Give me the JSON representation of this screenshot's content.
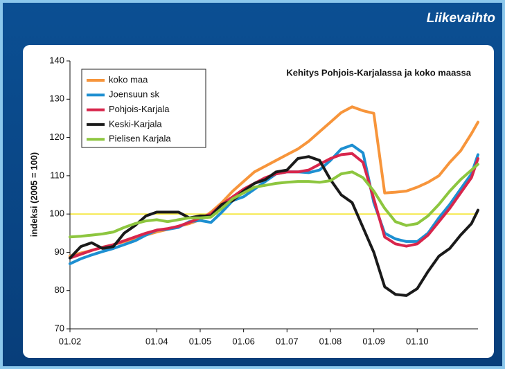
{
  "header": {
    "title": "Liikevaihto"
  },
  "chart_data": {
    "type": "line",
    "annotation": "Kehitys Pohjois-Karjalassa ja koko maassa",
    "y_label": "indeksi (2005 = 100)",
    "x": [
      2002,
      2002.25,
      2002.5,
      2002.75,
      2003,
      2003.25,
      2003.5,
      2003.75,
      2004,
      2004.25,
      2004.5,
      2004.75,
      2005,
      2005.25,
      2005.5,
      2005.75,
      2006,
      2006.25,
      2006.5,
      2006.75,
      2007,
      2007.25,
      2007.5,
      2007.75,
      2008,
      2008.25,
      2008.5,
      2008.75,
      2009,
      2009.25,
      2009.5,
      2009.75,
      2010,
      2010.25,
      2010.5,
      2010.75,
      2011,
      2011.25,
      2011.4
    ],
    "xlim": [
      2002,
      2011.4
    ],
    "xticks": [
      {
        "value": 2002,
        "label": "01.02"
      },
      {
        "value": 2004,
        "label": "01.04"
      },
      {
        "value": 2005,
        "label": "01.05"
      },
      {
        "value": 2006,
        "label": "01.06"
      },
      {
        "value": 2007,
        "label": "01.07"
      },
      {
        "value": 2008,
        "label": "01.08"
      },
      {
        "value": 2009,
        "label": "01.09"
      },
      {
        "value": 2010,
        "label": "01.10"
      }
    ],
    "ylim": [
      70,
      140
    ],
    "yticks": [
      70,
      80,
      90,
      100,
      110,
      120,
      130,
      140
    ],
    "grid": false,
    "reference_line": {
      "value": 100,
      "color": "#f2e21c"
    },
    "legend": "top-left",
    "series": [
      {
        "name": "koko maa",
        "color": "#f7953b",
        "values": [
          89,
          89.8,
          90.5,
          91.3,
          92,
          92.8,
          93.6,
          94.5,
          95.3,
          96,
          96.8,
          97.5,
          98.5,
          100.5,
          103,
          106,
          108.5,
          111,
          112.5,
          114,
          115.5,
          117,
          119,
          121.5,
          124,
          126.5,
          128,
          127,
          126.3,
          105.5,
          105.7,
          106,
          107,
          108.3,
          110,
          113.5,
          116.5,
          121,
          124
        ]
      },
      {
        "name": "Joensuun sk",
        "color": "#1d8fd1",
        "values": [
          87,
          88.3,
          89.3,
          90.2,
          91,
          92,
          93,
          94.5,
          95.8,
          96,
          96.5,
          98,
          98.3,
          97.8,
          100.5,
          103.5,
          104.5,
          106.5,
          108.5,
          110.5,
          111,
          111,
          110.8,
          111.5,
          114,
          117,
          118,
          116,
          103,
          95,
          93.5,
          92.8,
          92.8,
          95,
          99,
          102.5,
          106.5,
          110.5,
          115.5
        ]
      },
      {
        "name": "Pohjois-Karjala",
        "color": "#d8264c",
        "values": [
          88.5,
          89.5,
          90.5,
          91.3,
          92,
          93,
          94,
          95,
          95.8,
          96.2,
          96.8,
          97.8,
          99,
          100,
          102.5,
          104.5,
          106.5,
          108,
          109.5,
          110.5,
          111,
          111,
          111.5,
          113,
          114.5,
          115.5,
          115.8,
          113.5,
          104,
          94,
          92.2,
          91.6,
          92.2,
          94.5,
          98,
          101.5,
          105.5,
          109.5,
          114.5
        ]
      },
      {
        "name": "Keski-Karjala",
        "color": "#1a1a1a",
        "values": [
          88.5,
          91.5,
          92.5,
          91,
          91.5,
          95,
          97,
          99.5,
          100.5,
          100.5,
          100.5,
          99,
          99.5,
          99.5,
          102.5,
          103.5,
          106,
          108,
          109,
          111,
          111.5,
          114.5,
          115,
          114,
          109,
          105,
          103,
          96.5,
          90,
          81,
          79,
          78.7,
          80.5,
          85,
          89,
          91,
          94.5,
          97.5,
          101
        ]
      },
      {
        "name": "Pielisen Karjala",
        "color": "#8dc63f",
        "values": [
          94,
          94.2,
          94.5,
          94.8,
          95.3,
          96.5,
          97.5,
          98.2,
          98.5,
          98,
          98.5,
          99,
          99,
          99.2,
          101.5,
          104,
          105.5,
          107,
          107.5,
          108,
          108.3,
          108.5,
          108.5,
          108.3,
          108.7,
          110.5,
          111,
          109.5,
          106,
          101.5,
          98,
          97,
          97.5,
          99.5,
          102.5,
          106,
          109,
          111.5,
          113
        ]
      }
    ]
  }
}
